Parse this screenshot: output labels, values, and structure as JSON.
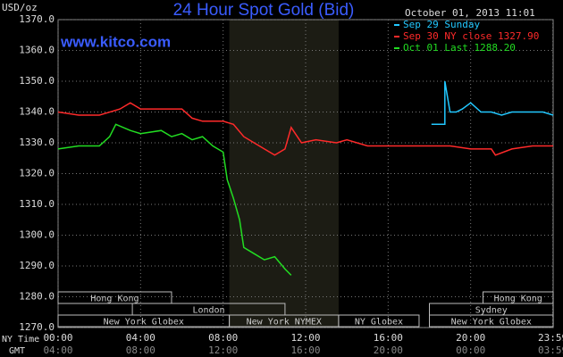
{
  "chart_data": {
    "type": "line",
    "title": "24 Hour Spot Gold (Bid)",
    "site": "www.kitco.com",
    "y_label": "USD/oz",
    "timestamp": "October 01, 2013 11:01",
    "x_row_labels": [
      "NY Time",
      "GMT"
    ],
    "xlim": [
      0,
      24
    ],
    "xticks": [
      {
        "value": 0,
        "label": "00:00"
      },
      {
        "value": 4,
        "label": "04:00"
      },
      {
        "value": 8,
        "label": "08:00"
      },
      {
        "value": 12,
        "label": "12:00"
      },
      {
        "value": 16,
        "label": "16:00"
      },
      {
        "value": 20,
        "label": "20:00"
      },
      {
        "value": 23.983,
        "label": "23:59"
      }
    ],
    "gmt_labels": [
      "04:00",
      "08:00",
      "12:00",
      "16:00",
      "20:00",
      "00:00",
      "03:59"
    ],
    "ylim": [
      1270,
      1370
    ],
    "yticks": [
      {
        "value": 1270,
        "label": "1270.0"
      },
      {
        "value": 1280,
        "label": "1280.0"
      },
      {
        "value": 1290,
        "label": "1290.0"
      },
      {
        "value": 1300,
        "label": "1300.0"
      },
      {
        "value": 1310,
        "label": "1310.0"
      },
      {
        "value": 1320,
        "label": "1320.0"
      },
      {
        "value": 1330,
        "label": "1330.0"
      },
      {
        "value": 1340,
        "label": "1340.0"
      },
      {
        "value": 1350,
        "label": "1350.0"
      },
      {
        "value": 1360,
        "label": "1360.0"
      },
      {
        "value": 1370,
        "label": "1370.0"
      }
    ],
    "grid": true,
    "series": [
      {
        "name": "Sep 29 Sunday",
        "color": "#22c8ff",
        "x": [
          18.1,
          18.75,
          18.75,
          18.85,
          19.0,
          19.3,
          19.6,
          20.0,
          20.5,
          21.0,
          21.5,
          22.0,
          22.5,
          23.0,
          23.5,
          24.0
        ],
        "values": [
          1336,
          1336,
          1350,
          1346,
          1340,
          1340,
          1341,
          1343,
          1340,
          1340,
          1339,
          1340,
          1340,
          1340,
          1340,
          1339
        ]
      },
      {
        "name": "Sep 30 NY close 1327.90",
        "color": "#ff2a2a",
        "x": [
          0,
          1,
          2,
          3,
          3.5,
          4,
          5,
          6,
          6.5,
          7,
          8,
          8.5,
          9,
          9.5,
          10,
          10.5,
          11,
          11.3,
          11.8,
          12.5,
          13.5,
          14,
          15,
          16,
          17,
          18,
          19,
          20,
          21,
          21.2,
          22,
          23,
          24
        ],
        "values": [
          1340,
          1339,
          1339,
          1341,
          1343,
          1341,
          1341,
          1341,
          1338,
          1337,
          1337,
          1336,
          1332,
          1330,
          1328,
          1326,
          1328,
          1335,
          1330,
          1331,
          1330,
          1331,
          1329,
          1329,
          1329,
          1329,
          1329,
          1328,
          1328,
          1326,
          1328,
          1329,
          1329
        ]
      },
      {
        "name": "Oct 01 Last 1288.20",
        "color": "#22dd22",
        "x": [
          0,
          1,
          2,
          2.5,
          2.8,
          3.5,
          4,
          5,
          5.5,
          6,
          6.5,
          7,
          7.5,
          8,
          8.2,
          8.5,
          8.8,
          9,
          9.5,
          10,
          10.5,
          11,
          11.3
        ],
        "values": [
          1328,
          1329,
          1329,
          1332,
          1336,
          1334,
          1333,
          1334,
          1332,
          1333,
          1331,
          1332,
          1329,
          1327,
          1318,
          1312,
          1305,
          1296,
          1294,
          1292,
          1293,
          1289,
          1287
        ]
      }
    ],
    "sessions": [
      {
        "name": "Hong Kong",
        "start": 0,
        "end": 5.5,
        "row": 0
      },
      {
        "name": "Hong Kong",
        "start": 20.6,
        "end": 24,
        "row": 0
      },
      {
        "name": "London",
        "start": 3.6,
        "end": 11,
        "row": 1
      },
      {
        "name": "Sydney",
        "start": 18,
        "end": 24,
        "row": 1
      },
      {
        "name": "New York Globex",
        "start": 0,
        "end": 8.3,
        "row": 2
      },
      {
        "name": "New York NYMEX",
        "start": 8.3,
        "end": 13.6,
        "row": 2,
        "shaded": true
      },
      {
        "name": "NY Globex",
        "start": 13.6,
        "end": 17.5,
        "row": 2
      },
      {
        "name": "New York Globex",
        "start": 18,
        "end": 24,
        "row": 2
      }
    ]
  }
}
